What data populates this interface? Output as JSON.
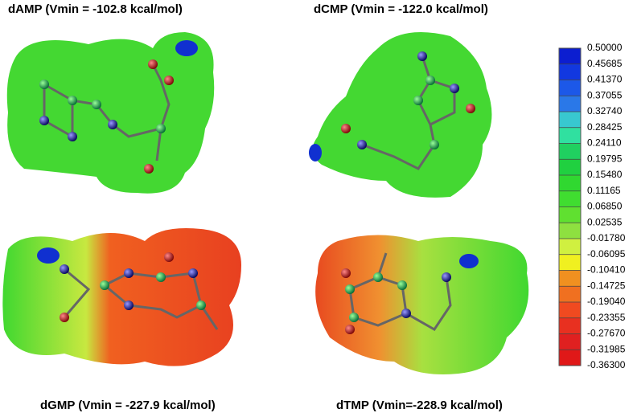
{
  "panels": [
    {
      "title": "dAMP (Vmin = -102.8 kcal/mol)"
    },
    {
      "title": "dCMP (Vmin = -122.0 kcal/mol)"
    },
    {
      "title": "dGMP (Vmin = -227.9 kcal/mol)"
    },
    {
      "title": "dTMP (Vmin=-228.9 kcal/mol)"
    }
  ],
  "colorbar": {
    "ticks": [
      {
        "value": 0.5,
        "label": "0.50000"
      },
      {
        "value": 0.45685,
        "label": "0.45685"
      },
      {
        "value": 0.4137,
        "label": "0.41370"
      },
      {
        "value": 0.37055,
        "label": "0.37055"
      },
      {
        "value": 0.3274,
        "label": "0.32740"
      },
      {
        "value": 0.28425,
        "label": "0.28425"
      },
      {
        "value": 0.2411,
        "label": "0.24110"
      },
      {
        "value": 0.19795,
        "label": "0.19795"
      },
      {
        "value": 0.1548,
        "label": "0.15480"
      },
      {
        "value": 0.11165,
        "label": "0.11165"
      },
      {
        "value": 0.0685,
        "label": "0.06850"
      },
      {
        "value": 0.02535,
        "label": "0.02535"
      },
      {
        "value": -0.0178,
        "label": "-0.01780"
      },
      {
        "value": -0.06095,
        "label": "-0.06095"
      },
      {
        "value": -0.1041,
        "label": "-0.10410"
      },
      {
        "value": -0.14725,
        "label": "-0.14725"
      },
      {
        "value": -0.1904,
        "label": "-0.19040"
      },
      {
        "value": -0.23355,
        "label": "-0.23355"
      },
      {
        "value": -0.2767,
        "label": "-0.27670"
      },
      {
        "value": -0.31985,
        "label": "-0.31985"
      },
      {
        "value": -0.363,
        "label": "-0.36300"
      }
    ],
    "colors": [
      "#0c1ed0",
      "#1238e0",
      "#1c58e8",
      "#2a78e8",
      "#38c8d0",
      "#30e0a0",
      "#20d060",
      "#20d040",
      "#30d830",
      "#40dd30",
      "#60e030",
      "#8ee040",
      "#d0f040",
      "#f0f020",
      "#f09020",
      "#f07020",
      "#f04a20",
      "#e83020",
      "#e02020",
      "#e01818"
    ]
  }
}
